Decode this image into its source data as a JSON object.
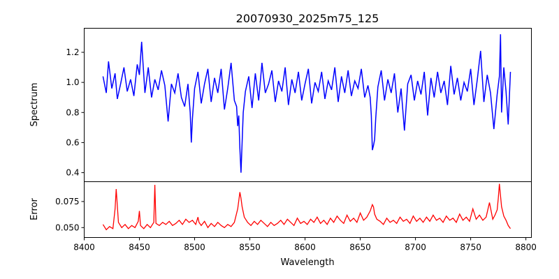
{
  "chart_data": {
    "title": "20070930_2025m75_125",
    "type": "line",
    "xlabel": "Wavelength",
    "xlim": [
      8400,
      8805
    ],
    "xticks": [
      8400,
      8450,
      8500,
      8550,
      8600,
      8650,
      8700,
      8750,
      8800
    ],
    "panels": [
      {
        "ylabel": "Spectrum",
        "ylim": [
          0.34,
          1.36
        ],
        "yticks": [
          0.4,
          0.6,
          0.8,
          1.0,
          1.2
        ],
        "ytick_labels": [
          "0.4",
          "0.6",
          "0.8",
          "1.0",
          "1.2"
        ],
        "color": "#0000ff",
        "x": [
          8417,
          8420,
          8422,
          8425,
          8428,
          8430,
          8433,
          8436,
          8439,
          8442,
          8445,
          8448,
          8450,
          8452,
          8455,
          8458,
          8461,
          8464,
          8467,
          8470,
          8473,
          8476,
          8479,
          8482,
          8485,
          8488,
          8491,
          8494,
          8496,
          8497,
          8498,
          8500,
          8503,
          8506,
          8509,
          8512,
          8515,
          8518,
          8521,
          8524,
          8527,
          8530,
          8533,
          8536,
          8538,
          8539,
          8540,
          8541,
          8542,
          8543,
          8544,
          8546,
          8549,
          8552,
          8555,
          8558,
          8561,
          8564,
          8567,
          8570,
          8573,
          8576,
          8579,
          8582,
          8585,
          8588,
          8591,
          8594,
          8597,
          8600,
          8603,
          8606,
          8609,
          8612,
          8615,
          8618,
          8621,
          8624,
          8627,
          8630,
          8633,
          8636,
          8639,
          8642,
          8645,
          8648,
          8651,
          8654,
          8657,
          8659,
          8660,
          8661,
          8662,
          8663,
          8664,
          8666,
          8669,
          8672,
          8675,
          8678,
          8681,
          8684,
          8687,
          8690,
          8693,
          8696,
          8699,
          8702,
          8705,
          8708,
          8711,
          8714,
          8717,
          8720,
          8723,
          8726,
          8729,
          8732,
          8735,
          8738,
          8741,
          8744,
          8747,
          8750,
          8753,
          8756,
          8759,
          8762,
          8765,
          8768,
          8771,
          8774,
          8776,
          8777,
          8778,
          8780,
          8782,
          8784,
          8786
        ],
        "y": [
          1.04,
          0.93,
          1.14,
          0.96,
          1.06,
          0.89,
          0.99,
          1.1,
          0.94,
          1.02,
          0.91,
          1.12,
          1.05,
          1.27,
          0.93,
          1.1,
          0.9,
          1.02,
          0.95,
          1.08,
          0.98,
          0.74,
          0.99,
          0.93,
          1.06,
          0.9,
          0.84,
          0.99,
          0.8,
          0.6,
          0.76,
          0.96,
          1.07,
          0.86,
          0.99,
          1.09,
          0.87,
          1.03,
          0.93,
          1.09,
          0.82,
          0.96,
          1.13,
          0.88,
          0.84,
          0.71,
          0.78,
          0.56,
          0.4,
          0.6,
          0.8,
          0.94,
          1.04,
          0.83,
          1.06,
          0.88,
          1.13,
          0.93,
          0.99,
          1.08,
          0.87,
          1.01,
          0.94,
          1.1,
          0.85,
          1.02,
          0.93,
          1.07,
          0.88,
          0.99,
          1.09,
          0.86,
          1.0,
          0.94,
          1.07,
          0.89,
          1.01,
          0.95,
          1.1,
          0.87,
          1.04,
          0.93,
          1.08,
          0.91,
          1.01,
          0.96,
          1.09,
          0.9,
          0.98,
          0.9,
          0.78,
          0.55,
          0.58,
          0.62,
          0.76,
          0.97,
          1.08,
          0.88,
          1.02,
          0.93,
          1.06,
          0.8,
          0.96,
          0.68,
          0.99,
          1.05,
          0.88,
          1.01,
          0.92,
          1.07,
          0.78,
          1.03,
          0.9,
          1.07,
          0.93,
          1.01,
          0.85,
          1.11,
          0.92,
          1.03,
          0.88,
          1.0,
          0.94,
          1.09,
          0.85,
          1.02,
          1.21,
          0.87,
          1.05,
          0.93,
          0.69,
          0.92,
          1.04,
          1.32,
          0.8,
          1.1,
          0.94,
          0.72,
          1.07
        ]
      },
      {
        "ylabel": "Error",
        "ylim": [
          0.0405,
          0.094
        ],
        "yticks": [
          0.05,
          0.075
        ],
        "ytick_labels": [
          "0.050",
          "0.075"
        ],
        "color": "#ff0000",
        "x": [
          8417,
          8420,
          8423,
          8426,
          8428,
          8429,
          8431,
          8434,
          8437,
          8440,
          8443,
          8446,
          8449,
          8450,
          8451,
          8454,
          8457,
          8460,
          8463,
          8464,
          8465,
          8468,
          8471,
          8474,
          8477,
          8480,
          8483,
          8486,
          8489,
          8492,
          8495,
          8498,
          8501,
          8503,
          8504,
          8506,
          8509,
          8512,
          8515,
          8518,
          8521,
          8524,
          8527,
          8530,
          8533,
          8536,
          8539,
          8541,
          8542,
          8543,
          8545,
          8548,
          8551,
          8554,
          8557,
          8560,
          8563,
          8566,
          8569,
          8572,
          8575,
          8578,
          8581,
          8584,
          8587,
          8590,
          8593,
          8596,
          8599,
          8602,
          8605,
          8608,
          8611,
          8614,
          8617,
          8620,
          8623,
          8626,
          8629,
          8632,
          8635,
          8638,
          8641,
          8644,
          8647,
          8650,
          8653,
          8656,
          8659,
          8661,
          8662,
          8663,
          8665,
          8668,
          8671,
          8674,
          8677,
          8680,
          8683,
          8686,
          8689,
          8692,
          8695,
          8698,
          8701,
          8704,
          8707,
          8710,
          8713,
          8716,
          8719,
          8722,
          8725,
          8728,
          8731,
          8734,
          8737,
          8740,
          8743,
          8746,
          8749,
          8752,
          8755,
          8758,
          8761,
          8764,
          8767,
          8770,
          8772,
          8774,
          8775,
          8776,
          8778,
          8780,
          8782,
          8784,
          8786
        ],
        "y": [
          0.053,
          0.048,
          0.051,
          0.049,
          0.068,
          0.087,
          0.055,
          0.05,
          0.053,
          0.049,
          0.052,
          0.05,
          0.056,
          0.066,
          0.052,
          0.049,
          0.053,
          0.05,
          0.055,
          0.091,
          0.054,
          0.052,
          0.055,
          0.053,
          0.056,
          0.052,
          0.054,
          0.057,
          0.053,
          0.058,
          0.055,
          0.057,
          0.053,
          0.06,
          0.055,
          0.052,
          0.056,
          0.05,
          0.054,
          0.051,
          0.055,
          0.052,
          0.05,
          0.053,
          0.051,
          0.055,
          0.068,
          0.084,
          0.078,
          0.07,
          0.06,
          0.055,
          0.052,
          0.056,
          0.053,
          0.057,
          0.054,
          0.051,
          0.055,
          0.052,
          0.054,
          0.057,
          0.053,
          0.058,
          0.055,
          0.052,
          0.059,
          0.054,
          0.056,
          0.053,
          0.058,
          0.055,
          0.06,
          0.054,
          0.057,
          0.053,
          0.059,
          0.055,
          0.061,
          0.057,
          0.054,
          0.062,
          0.056,
          0.059,
          0.055,
          0.064,
          0.057,
          0.06,
          0.066,
          0.072,
          0.07,
          0.063,
          0.058,
          0.056,
          0.053,
          0.059,
          0.055,
          0.057,
          0.054,
          0.06,
          0.056,
          0.058,
          0.054,
          0.061,
          0.056,
          0.059,
          0.055,
          0.06,
          0.056,
          0.062,
          0.057,
          0.059,
          0.055,
          0.061,
          0.057,
          0.059,
          0.055,
          0.063,
          0.057,
          0.06,
          0.056,
          0.068,
          0.058,
          0.062,
          0.057,
          0.06,
          0.074,
          0.058,
          0.062,
          0.067,
          0.078,
          0.092,
          0.07,
          0.061,
          0.057,
          0.052,
          0.049
        ]
      }
    ]
  }
}
